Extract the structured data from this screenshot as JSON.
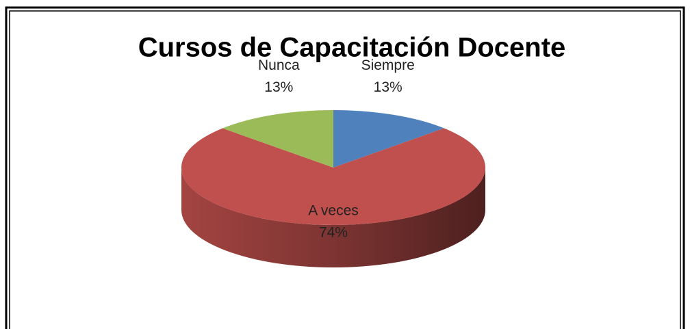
{
  "chart_data": {
    "type": "pie",
    "title": "Cursos de Capacitación Docente",
    "categories": [
      "Siempre",
      "A veces",
      "Nunca"
    ],
    "values": [
      13,
      74,
      13
    ],
    "value_labels": [
      "13%",
      "74%",
      "13%"
    ],
    "colors": [
      "#4f81bd",
      "#c0504d",
      "#9bbb59"
    ]
  }
}
